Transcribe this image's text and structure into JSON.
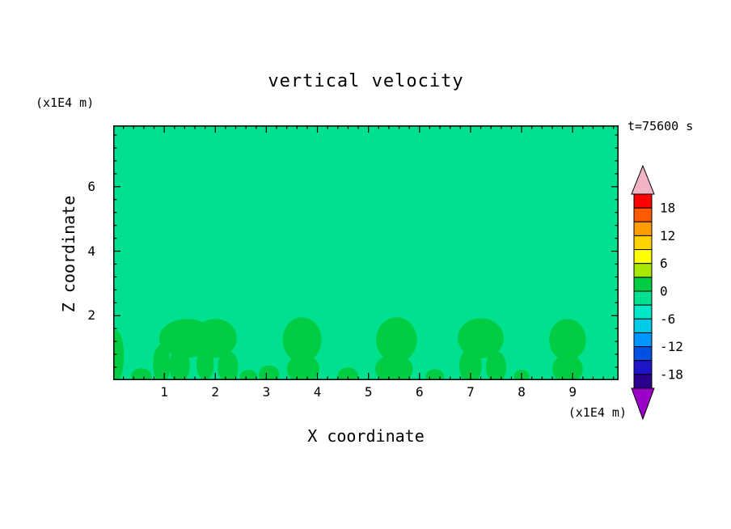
{
  "title": "vertical velocity",
  "time_label": "t=75600 s",
  "axes": {
    "x_label": "X coordinate",
    "y_label": "Z coordinate",
    "x_unit": "(x1E4 m)",
    "y_unit": "(x1E4 m)"
  },
  "chart_data": {
    "type": "heatmap",
    "title": "vertical velocity",
    "xlabel": "X coordinate",
    "ylabel": "Z coordinate",
    "x_unit_scale": "x1E4 m",
    "y_unit_scale": "x1E4 m",
    "time_annotation": "t=75600 s",
    "xlim": [
      0,
      9.9
    ],
    "ylim": [
      0,
      7.9
    ],
    "x_major_ticks": [
      1,
      2,
      3,
      4,
      5,
      6,
      7,
      8,
      9
    ],
    "y_major_ticks": [
      2,
      4,
      6
    ],
    "x_minor_step": 0.2,
    "y_minor_step": 0.4,
    "grid": false,
    "frame_color": "#000000",
    "background_color": "#00E18F",
    "background_value_range": [
      -3,
      0
    ],
    "feature_color": "#00CC44",
    "feature_value_range": [
      0,
      3
    ],
    "colorbar": {
      "position": "right",
      "tick_labels": [
        18,
        12,
        6,
        0,
        -6,
        -12,
        -18
      ],
      "value_range": [
        -21,
        21
      ],
      "segment_size": 3,
      "segment_colors_top_to_bottom": [
        "#FF0000",
        "#FF5A00",
        "#FF9C00",
        "#FFD200",
        "#FFFF00",
        "#A8E800",
        "#00CC44",
        "#00E18F",
        "#00E6C8",
        "#00CCE8",
        "#0096FF",
        "#0050E6",
        "#1E14C8",
        "#28008C"
      ],
      "over_arrow_color": "#F2B4C4",
      "under_arrow_color": "#9C00C8"
    },
    "updraft_features_ellipses_data_coords": [
      {
        "cx": 0.05,
        "cy": 0.75,
        "rx": 0.16,
        "ry": 0.8
      },
      {
        "cx": 0.55,
        "cy": 0.12,
        "rx": 0.2,
        "ry": 0.25
      },
      {
        "cx": 0.95,
        "cy": 0.5,
        "rx": 0.17,
        "ry": 0.6
      },
      {
        "cx": 1.45,
        "cy": 1.3,
        "rx": 0.55,
        "ry": 0.6
      },
      {
        "cx": 2.0,
        "cy": 1.3,
        "rx": 0.42,
        "ry": 0.6
      },
      {
        "cx": 1.3,
        "cy": 0.45,
        "rx": 0.2,
        "ry": 0.55
      },
      {
        "cx": 1.8,
        "cy": 0.5,
        "rx": 0.17,
        "ry": 0.5
      },
      {
        "cx": 2.25,
        "cy": 0.4,
        "rx": 0.2,
        "ry": 0.5
      },
      {
        "cx": 2.65,
        "cy": 0.12,
        "rx": 0.17,
        "ry": 0.2
      },
      {
        "cx": 3.05,
        "cy": 0.18,
        "rx": 0.2,
        "ry": 0.28
      },
      {
        "cx": 3.7,
        "cy": 1.25,
        "rx": 0.38,
        "ry": 0.7
      },
      {
        "cx": 3.72,
        "cy": 0.35,
        "rx": 0.32,
        "ry": 0.45
      },
      {
        "cx": 4.6,
        "cy": 0.15,
        "rx": 0.2,
        "ry": 0.24
      },
      {
        "cx": 5.55,
        "cy": 1.25,
        "rx": 0.4,
        "ry": 0.7
      },
      {
        "cx": 5.5,
        "cy": 0.35,
        "rx": 0.37,
        "ry": 0.45
      },
      {
        "cx": 6.3,
        "cy": 0.12,
        "rx": 0.18,
        "ry": 0.22
      },
      {
        "cx": 7.2,
        "cy": 1.3,
        "rx": 0.45,
        "ry": 0.62
      },
      {
        "cx": 7.0,
        "cy": 0.45,
        "rx": 0.22,
        "ry": 0.55
      },
      {
        "cx": 7.5,
        "cy": 0.4,
        "rx": 0.2,
        "ry": 0.5
      },
      {
        "cx": 8.0,
        "cy": 0.12,
        "rx": 0.15,
        "ry": 0.2
      },
      {
        "cx": 8.9,
        "cy": 1.25,
        "rx": 0.36,
        "ry": 0.65
      },
      {
        "cx": 8.9,
        "cy": 0.35,
        "rx": 0.3,
        "ry": 0.45
      }
    ]
  }
}
